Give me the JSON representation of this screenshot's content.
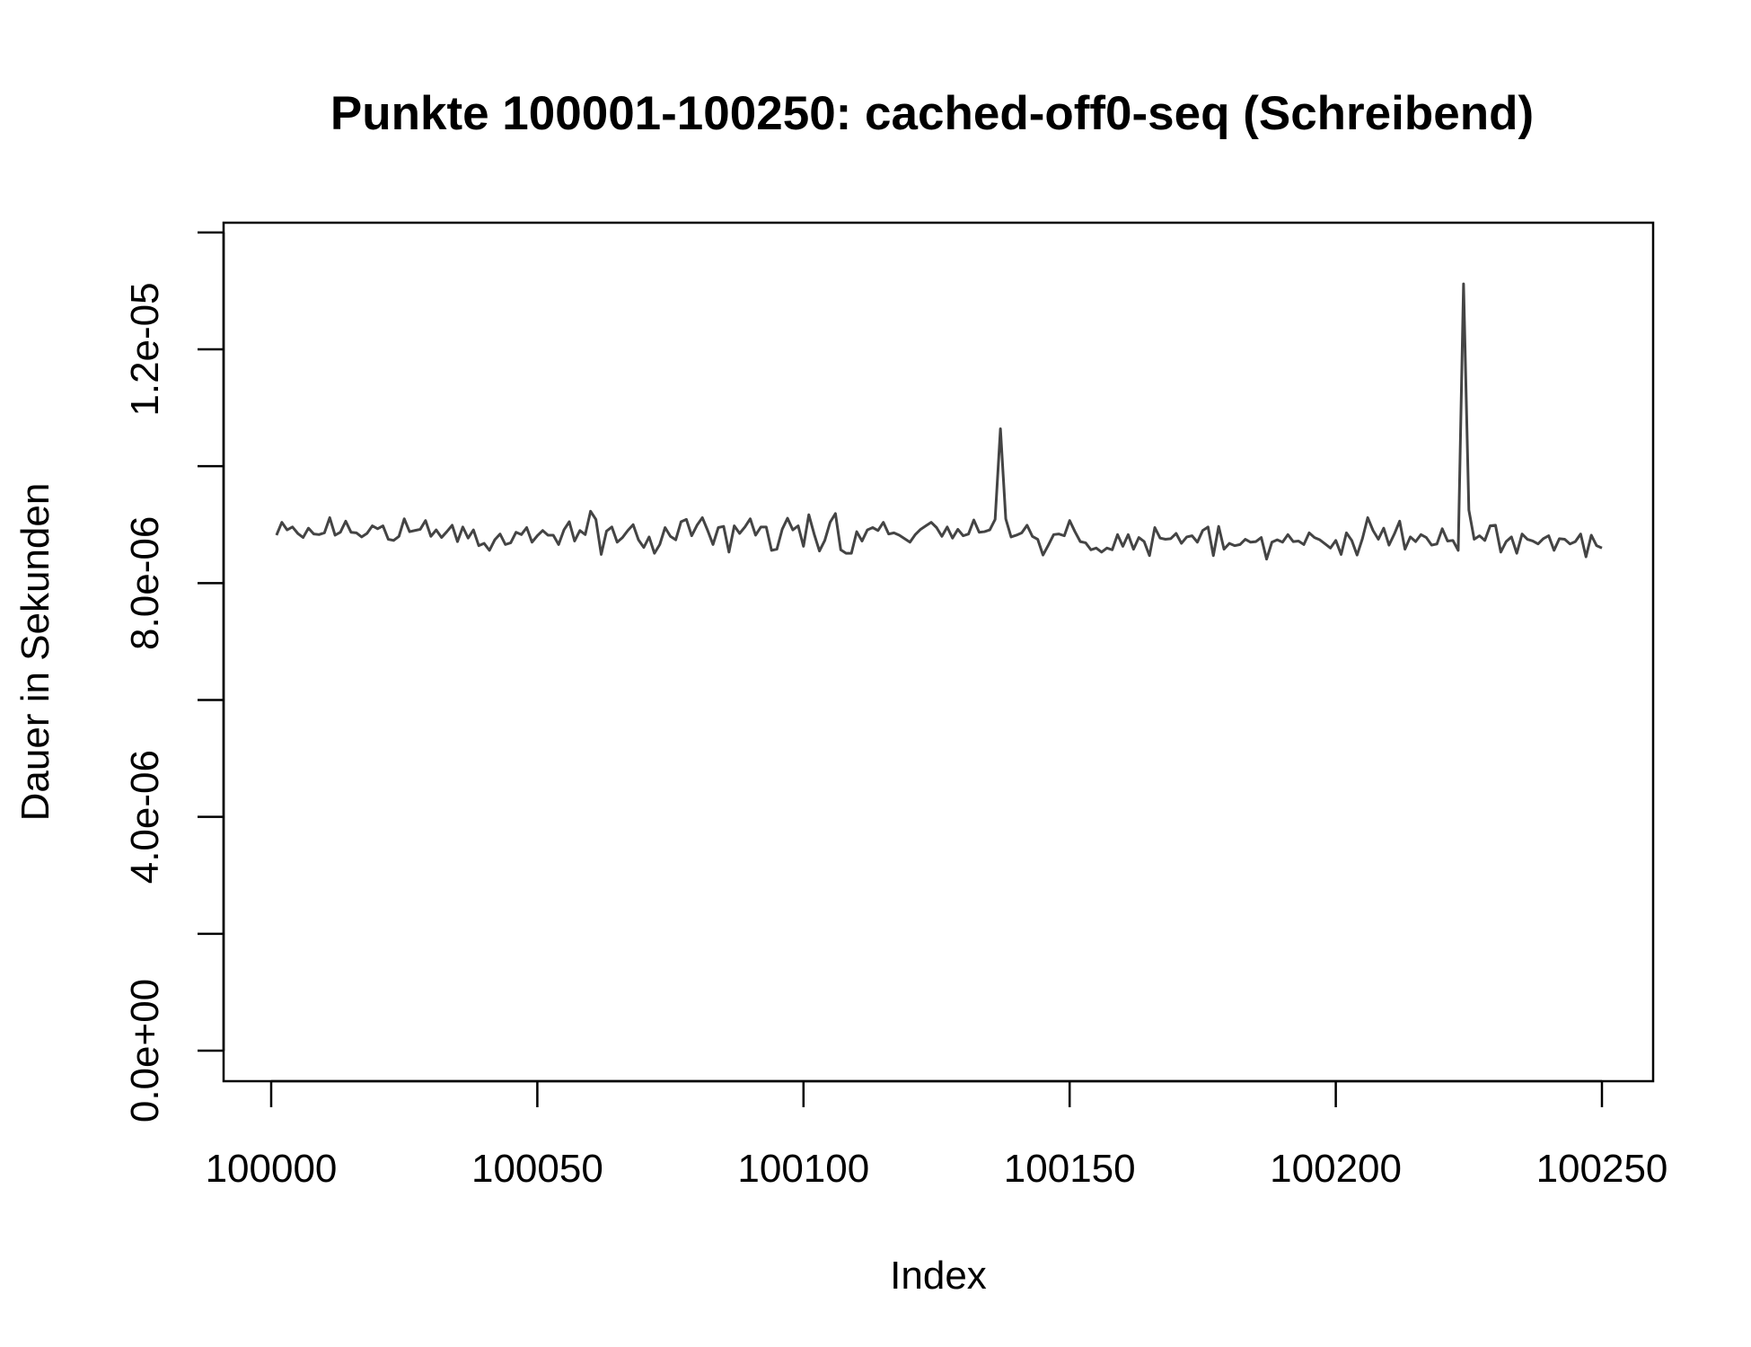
{
  "chart_data": {
    "type": "line",
    "title": "Punkte 100001-100250: cached-off0-seq (Schreibend)",
    "xlabel": "Index",
    "ylabel": "Dauer in Sekunden",
    "xlim": [
      100000,
      100250
    ],
    "ylim": [
      0,
      1.2e-05
    ],
    "x_ticks": [
      100000,
      100050,
      100100,
      100150,
      100200,
      100250
    ],
    "x_tick_labels": [
      "100000",
      "100050",
      "100100",
      "100150",
      "100200",
      "100250"
    ],
    "y_ticks": [
      0,
      2e-06,
      4e-06,
      6e-06,
      8e-06,
      1e-05,
      1.2e-05,
      1.4e-05
    ],
    "y_tick_labels": [
      "0.0e+00",
      "",
      "4.0e-06",
      "",
      "8.0e-06",
      "",
      "1.2e-05",
      ""
    ],
    "grid": false,
    "line_color": "#444444",
    "series": [
      {
        "x_start": 100001,
        "x_end": 100250,
        "values": [
          8.82e-06,
          9.04e-06,
          8.91e-06,
          8.96e-06,
          8.85e-06,
          8.78e-06,
          8.94e-06,
          8.84e-06,
          8.83e-06,
          8.86e-06,
          9.12e-06,
          8.82e-06,
          8.87e-06,
          9.06e-06,
          8.87e-06,
          8.86e-06,
          8.79e-06,
          8.85e-06,
          8.98e-06,
          8.93e-06,
          8.98e-06,
          8.75e-06,
          8.73e-06,
          8.8e-06,
          9.1e-06,
          8.88e-06,
          8.9e-06,
          8.92e-06,
          9.07e-06,
          8.8e-06,
          8.91e-06,
          8.78e-06,
          8.88e-06,
          8.99e-06,
          8.71e-06,
          8.96e-06,
          8.77e-06,
          8.91e-06,
          8.64e-06,
          8.68e-06,
          8.56e-06,
          8.74e-06,
          8.84e-06,
          8.66e-06,
          8.69e-06,
          8.87e-06,
          8.83e-06,
          8.95e-06,
          8.7e-06,
          8.81e-06,
          8.9e-06,
          8.82e-06,
          8.82e-06,
          8.66e-06,
          8.91e-06,
          9.05e-06,
          8.72e-06,
          8.9e-06,
          8.83e-06,
          9.23e-06,
          9.09e-06,
          8.49e-06,
          8.89e-06,
          8.96e-06,
          8.7e-06,
          8.78e-06,
          8.9e-06,
          9e-06,
          8.74e-06,
          8.61e-06,
          8.79e-06,
          8.51e-06,
          8.66e-06,
          8.95e-06,
          8.8e-06,
          8.74e-06,
          9.05e-06,
          9.09e-06,
          8.81e-06,
          8.99e-06,
          9.12e-06,
          8.9e-06,
          8.66e-06,
          8.95e-06,
          8.97e-06,
          8.53e-06,
          8.98e-06,
          8.85e-06,
          8.96e-06,
          9.1e-06,
          8.82e-06,
          8.96e-06,
          8.96e-06,
          8.56e-06,
          8.58e-06,
          8.92e-06,
          9.11e-06,
          8.91e-06,
          8.98e-06,
          8.63e-06,
          9.17e-06,
          8.84e-06,
          8.55e-06,
          8.73e-06,
          9.04e-06,
          9.19e-06,
          8.57e-06,
          8.51e-06,
          8.51e-06,
          8.88e-06,
          8.72e-06,
          8.91e-06,
          8.95e-06,
          8.9e-06,
          9.04e-06,
          8.84e-06,
          8.86e-06,
          8.82e-06,
          8.76e-06,
          8.7e-06,
          8.83e-06,
          8.92e-06,
          8.98e-06,
          9.04e-06,
          8.95e-06,
          8.8e-06,
          8.96e-06,
          8.77e-06,
          8.92e-06,
          8.81e-06,
          8.84e-06,
          9.08e-06,
          8.87e-06,
          8.88e-06,
          8.91e-06,
          9.09e-06,
          1.064e-05,
          9.1e-06,
          8.79e-06,
          8.82e-06,
          8.86e-06,
          8.99e-06,
          8.8e-06,
          8.75e-06,
          8.48e-06,
          8.65e-06,
          8.83e-06,
          8.84e-06,
          8.81e-06,
          9.07e-06,
          8.88e-06,
          8.71e-06,
          8.69e-06,
          8.57e-06,
          8.6e-06,
          8.53e-06,
          8.6e-06,
          8.57e-06,
          8.83e-06,
          8.63e-06,
          8.83e-06,
          8.58e-06,
          8.78e-06,
          8.71e-06,
          8.47e-06,
          8.95e-06,
          8.77e-06,
          8.75e-06,
          8.76e-06,
          8.85e-06,
          8.68e-06,
          8.79e-06,
          8.81e-06,
          8.7e-06,
          8.9e-06,
          8.96e-06,
          8.47e-06,
          8.97e-06,
          8.58e-06,
          8.68e-06,
          8.64e-06,
          8.66e-06,
          8.75e-06,
          8.7e-06,
          8.71e-06,
          8.78e-06,
          8.41e-06,
          8.7e-06,
          8.74e-06,
          8.7e-06,
          8.83e-06,
          8.71e-06,
          8.72e-06,
          8.66e-06,
          8.86e-06,
          8.78e-06,
          8.74e-06,
          8.67e-06,
          8.6e-06,
          8.73e-06,
          8.49e-06,
          8.86e-06,
          8.73e-06,
          8.48e-06,
          8.76e-06,
          9.12e-06,
          8.9e-06,
          8.75e-06,
          8.94e-06,
          8.65e-06,
          8.84e-06,
          9.06e-06,
          8.58e-06,
          8.79e-06,
          8.71e-06,
          8.83e-06,
          8.78e-06,
          8.65e-06,
          8.67e-06,
          8.93e-06,
          8.72e-06,
          8.73e-06,
          8.56e-06,
          1.312e-05,
          9.25e-06,
          8.75e-06,
          8.81e-06,
          8.73e-06,
          8.98e-06,
          8.99e-06,
          8.53e-06,
          8.71e-06,
          8.79e-06,
          8.51e-06,
          8.84e-06,
          8.75e-06,
          8.72e-06,
          8.67e-06,
          8.76e-06,
          8.81e-06,
          8.56e-06,
          8.76e-06,
          8.75e-06,
          8.67e-06,
          8.71e-06,
          8.84e-06,
          8.45e-06,
          8.82e-06,
          8.64e-06,
          8.6e-06
        ]
      }
    ]
  }
}
